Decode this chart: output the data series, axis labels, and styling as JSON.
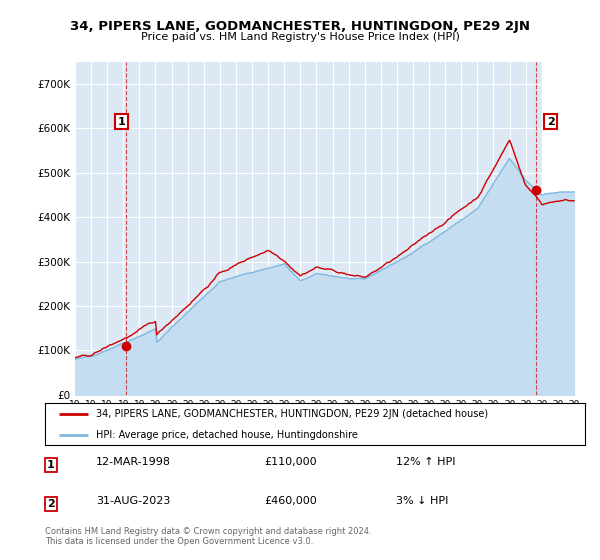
{
  "title": "34, PIPERS LANE, GODMANCHESTER, HUNTINGDON, PE29 2JN",
  "subtitle": "Price paid vs. HM Land Registry's House Price Index (HPI)",
  "bg_color": "#ffffff",
  "plot_bg_color": "#dce9f5",
  "grid_color": "#ffffff",
  "hpi_fill_color": "#c5ddf0",
  "hpi_line_color": "#7fb8df",
  "price_color": "#cc0000",
  "legend_label_price": "34, PIPERS LANE, GODMANCHESTER, HUNTINGDON, PE29 2JN (detached house)",
  "legend_label_hpi": "HPI: Average price, detached house, Huntingdonshire",
  "sale1_date": "12-MAR-1998",
  "sale1_price": "£110,000",
  "sale1_hpi": "12% ↑ HPI",
  "sale1_year": 1998.19,
  "sale1_value": 110000,
  "sale2_date": "31-AUG-2023",
  "sale2_price": "£460,000",
  "sale2_hpi": "3% ↓ HPI",
  "sale2_year": 2023.66,
  "sale2_value": 460000,
  "copyright": "Contains HM Land Registry data © Crown copyright and database right 2024.\nThis data is licensed under the Open Government Licence v3.0.",
  "ylim_min": 0,
  "ylim_max": 750000,
  "xmin": 1995.0,
  "xmax": 2026.5
}
